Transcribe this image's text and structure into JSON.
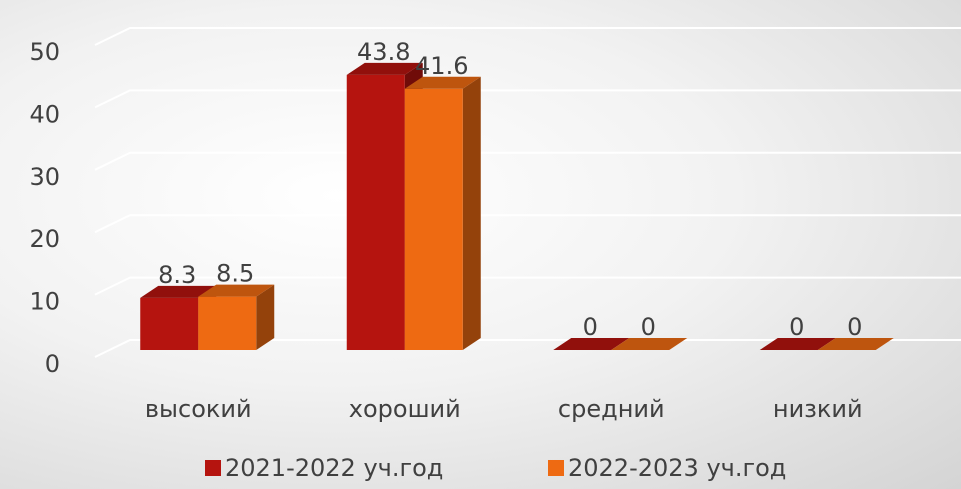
{
  "chart_data": {
    "type": "bar3d",
    "categories": [
      "высокий",
      "хороший",
      "средний",
      "низкий"
    ],
    "series": [
      {
        "name": "2021-2022 уч.год",
        "color": "#b5140f",
        "values": [
          8.3,
          43.8,
          0,
          0
        ]
      },
      {
        "name": "2022-2023 уч.год",
        "color": "#ee6a12",
        "values": [
          8.5,
          41.6,
          0,
          0
        ]
      }
    ],
    "ylim": [
      0,
      50
    ],
    "yticks": [
      0,
      10,
      20,
      30,
      40,
      50
    ],
    "grid": true,
    "legend": "bottom"
  }
}
